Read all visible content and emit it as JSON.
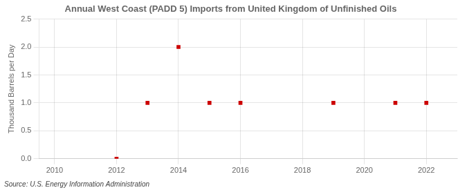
{
  "chart_data": {
    "type": "scatter",
    "title": "Annual West Coast (PADD 5) Imports from United Kingdom of Unfinished Oils",
    "y_label": "Thousand Barrels per Day",
    "annotations": [
      "Source: U.S. Energy Information Administration"
    ],
    "x": [
      2012,
      2013,
      2014,
      2015,
      2016,
      2019,
      2021,
      2022
    ],
    "values": [
      0.0,
      1.0,
      2.0,
      1.0,
      1.0,
      1.0,
      1.0,
      1.0
    ],
    "color": "#cc0000",
    "marker": "square",
    "xlim": [
      2009.5,
      2023.0
    ],
    "xticks": [
      2010,
      2012,
      2014,
      2016,
      2018,
      2020,
      2022
    ],
    "ylim": [
      0.0,
      2.5
    ],
    "yticks": [
      {
        "value": 0.0,
        "label": "0.0"
      },
      0.5,
      {
        "value": 1.0,
        "label": "1.0"
      },
      1.5,
      {
        "value": 2.0,
        "label": "2.0"
      },
      2.5
    ],
    "grid": true
  }
}
